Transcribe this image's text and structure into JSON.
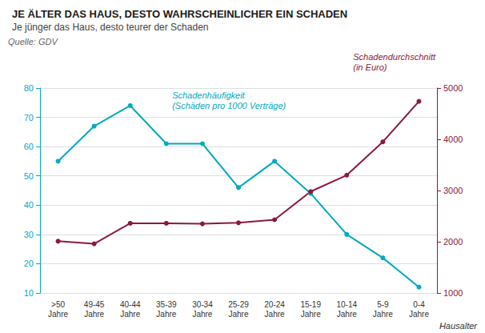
{
  "chart_data": {
    "type": "line",
    "title": "JE ÄLTER DAS HAUS, DESTO WAHRSCHEINLICHER EIN SCHADEN",
    "subtitle": "Je jünger das Haus, desto teurer der Schaden",
    "source": "Quelle: GDV",
    "xlabel": "Hausalter",
    "categories": [
      ">50\nJahre",
      "49-45\nJahre",
      "40-44\nJahre",
      "35-39\nJahre",
      "30-34\nJahre",
      "25-29\nJahre",
      "20-24\nJahre",
      "15-19\nJahre",
      "10-14\nJahre",
      "5-9\nJahre",
      "0-4\nJahre"
    ],
    "series": [
      {
        "name": "Schadenhäufigkeit\n(Schäden pro 1000 Verträge)",
        "color": "#00AABF",
        "axis": "y",
        "values": [
          55,
          67,
          74,
          61,
          61,
          46,
          55,
          44,
          30,
          22,
          12
        ]
      },
      {
        "name": "Schadendurchschnitt\n(in Euro)",
        "color": "#8B1A3A",
        "axis": "y2",
        "values": [
          2010,
          1960,
          2360,
          2360,
          2350,
          2370,
          2430,
          2980,
          3300,
          3950,
          4740
        ]
      }
    ],
    "ylim": [
      10,
      80
    ],
    "yticks": [
      10,
      20,
      30,
      40,
      50,
      60,
      70,
      80
    ],
    "y2lim": [
      1000,
      5000
    ],
    "y2ticks": [
      1000,
      2000,
      3000,
      4000,
      5000
    ],
    "grid": true,
    "legend": false
  }
}
